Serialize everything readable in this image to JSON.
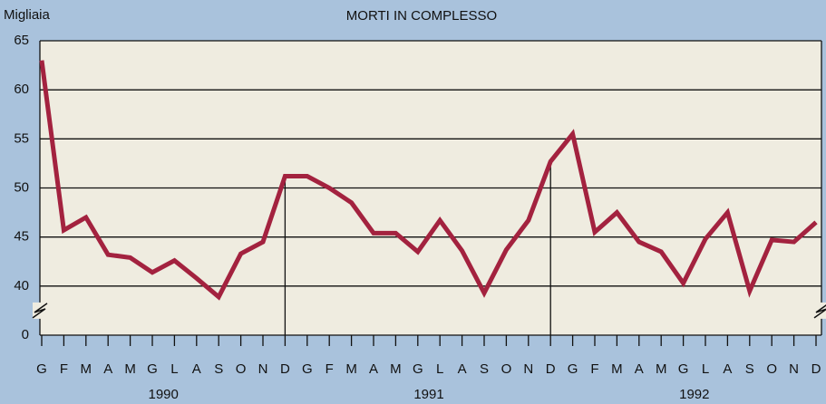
{
  "chart_data": {
    "type": "line",
    "title": "MORTI IN COMPLESSO",
    "y_label": "Migliaia",
    "categories": [
      "G",
      "F",
      "M",
      "A",
      "M",
      "G",
      "L",
      "A",
      "S",
      "O",
      "N",
      "D",
      "G",
      "F",
      "M",
      "A",
      "M",
      "G",
      "L",
      "A",
      "S",
      "O",
      "N",
      "D",
      "G",
      "F",
      "M",
      "A",
      "M",
      "G",
      "L",
      "A",
      "S",
      "O",
      "N",
      "D"
    ],
    "years": [
      "1990",
      "1991",
      "1992"
    ],
    "series": [
      {
        "color": "#a3223f",
        "values": [
          63,
          45.7,
          47,
          43.2,
          42.9,
          41.4,
          42.6,
          40.8,
          38.9,
          43.3,
          44.5,
          51.2,
          51.2,
          50,
          48.5,
          45.4,
          45.4,
          43.5,
          46.7,
          43.6,
          39.3,
          43.7,
          46.7,
          52.7,
          55.5,
          45.5,
          47.5,
          44.5,
          43.5,
          40.3,
          44.8,
          47.5,
          39.5,
          44.7,
          44.5,
          46.5
        ]
      }
    ],
    "ylim": [
      0,
      65
    ],
    "y_break": [
      0,
      35
    ],
    "yticks": [
      0,
      40,
      45,
      50,
      55,
      60,
      65
    ],
    "grid": true
  }
}
